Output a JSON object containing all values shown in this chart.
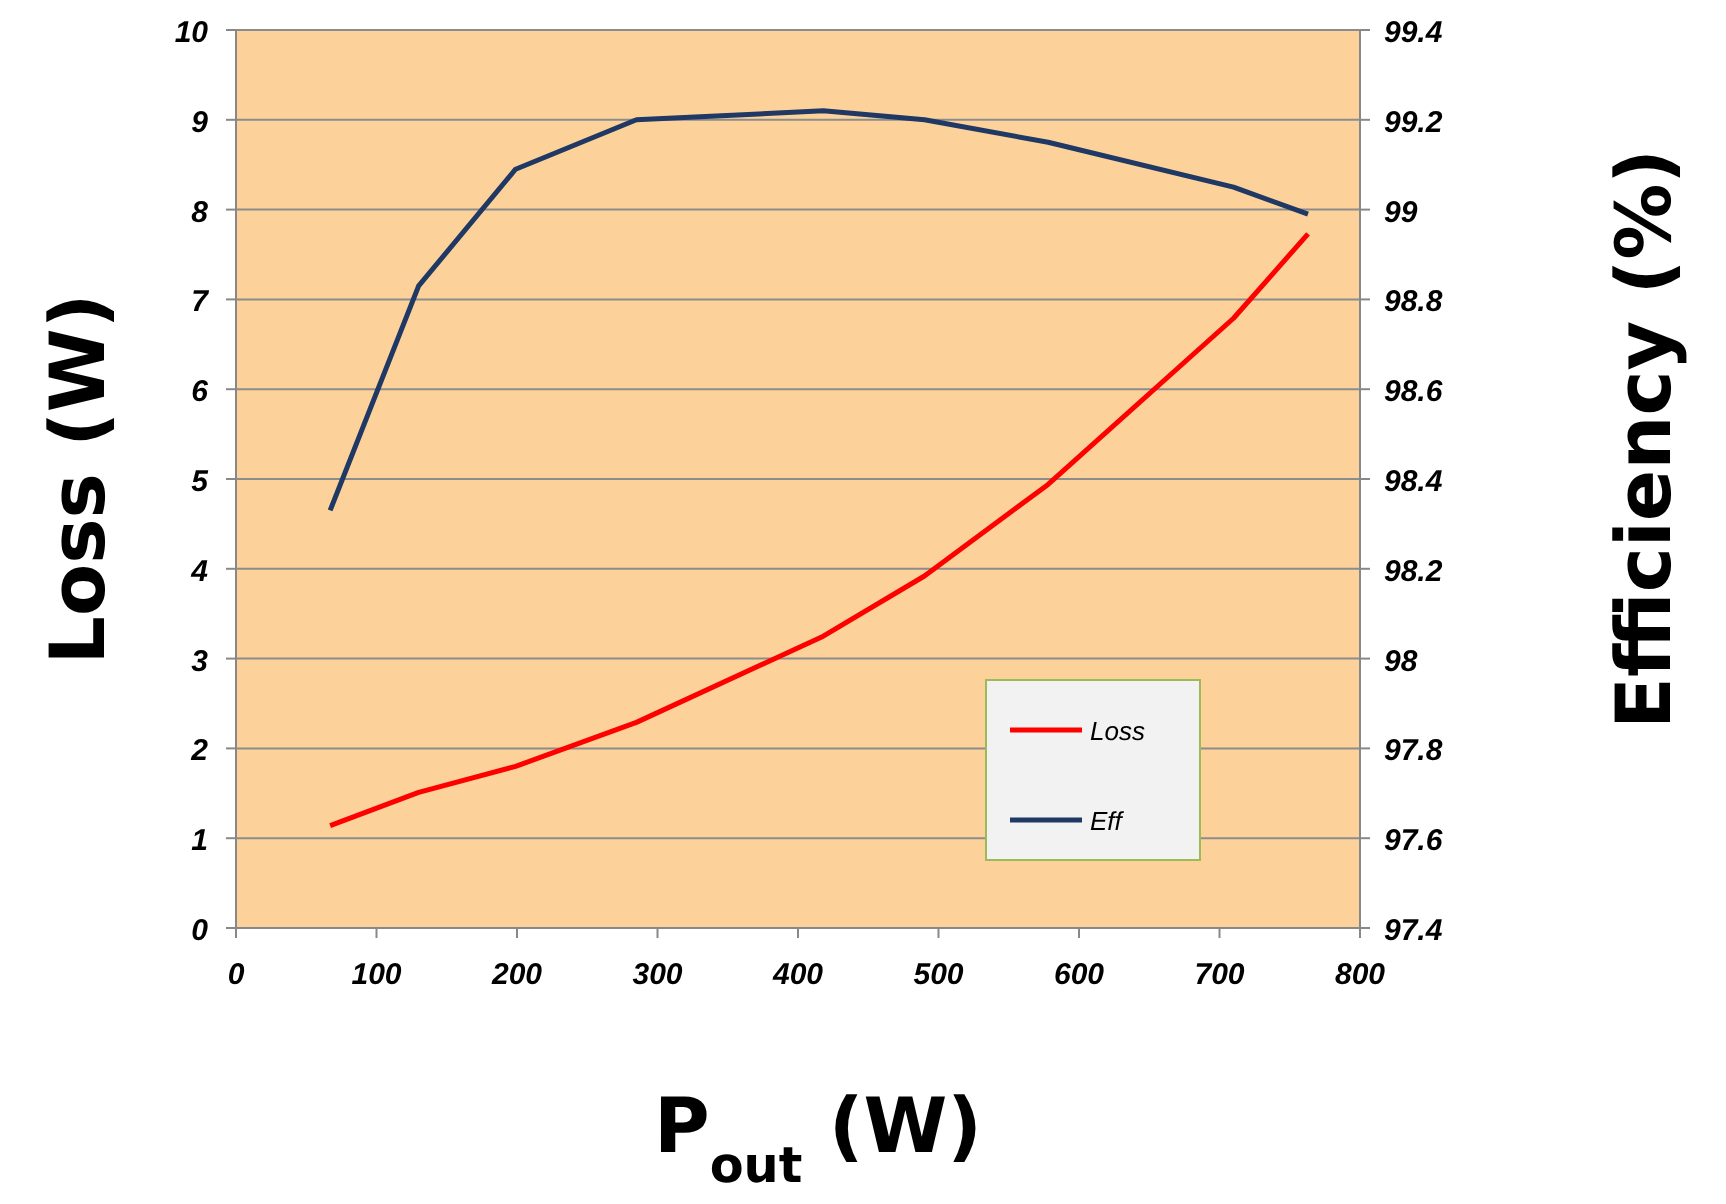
{
  "chart_data": {
    "type": "line",
    "xlabel": "P$_{out}$ (W)",
    "ylabel": "Loss (W)",
    "y2label": "Efficiency (%)",
    "xlim": [
      0,
      800
    ],
    "xticks": [
      0,
      100,
      200,
      300,
      400,
      500,
      600,
      700,
      800
    ],
    "ylim": [
      0,
      10
    ],
    "yticks": [
      0,
      1,
      2,
      3,
      4,
      5,
      6,
      7,
      8,
      9,
      10
    ],
    "y2lim": [
      97.4,
      99.4
    ],
    "y2ticks": [
      97.4,
      97.6,
      97.8,
      98,
      98.2,
      98.4,
      98.6,
      98.8,
      99,
      99.2,
      99.4
    ],
    "grid": "y",
    "legend": "bottom right",
    "line_style": "solid",
    "series": [
      {
        "name": "Loss",
        "color": "#ff0000",
        "x": [
          67,
          130,
          199,
          285,
          418,
          490,
          578,
          710,
          763
        ],
        "values": [
          1.14,
          1.51,
          1.8,
          2.29,
          3.25,
          3.92,
          4.94,
          6.79,
          7.73
        ]
      },
      {
        "name": "Eff",
        "color": "#1f3864",
        "axis": "y2",
        "x": [
          67,
          130,
          199,
          285,
          418,
          490,
          578,
          710,
          763
        ],
        "values": [
          98.33,
          98.83,
          99.09,
          99.2,
          99.22,
          99.2,
          99.15,
          99.05,
          98.99
        ]
      }
    ]
  }
}
